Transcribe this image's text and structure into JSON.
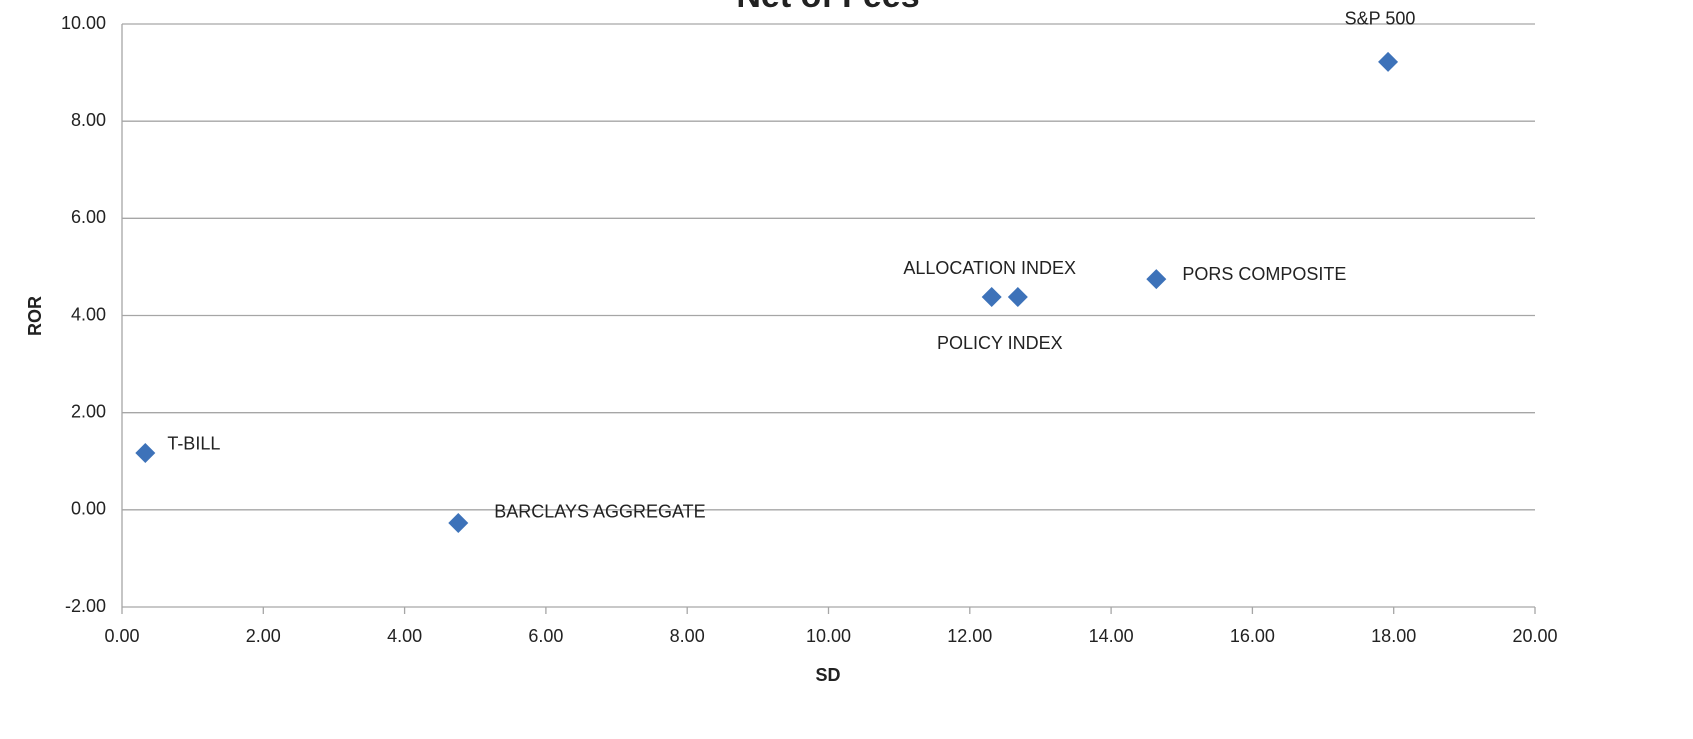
{
  "chart_data": {
    "type": "scatter",
    "title": "Net of Fees",
    "x_label": "SD",
    "y_label": "ROR",
    "labels": [
      "T-BILL",
      "BARCLAYS AGGREGATE",
      "ALLOCATION INDEX",
      "POLICY INDEX",
      "PORS COMPOSITE",
      "S&P 500"
    ],
    "x": [
      0.33,
      4.76,
      12.31,
      12.68,
      14.64,
      17.92
    ],
    "y": [
      1.17,
      -0.27,
      4.38,
      4.38,
      4.75,
      9.22
    ],
    "color": "#3d72b9",
    "xlim": [
      0,
      20
    ],
    "xticks": [
      {
        "value": 0,
        "label": "0.00"
      },
      {
        "value": 2,
        "label": "2.00"
      },
      {
        "value": 4,
        "label": "4.00"
      },
      {
        "value": 6,
        "label": "6.00"
      },
      {
        "value": 8,
        "label": "8.00"
      },
      {
        "value": 10,
        "label": "10.00"
      },
      {
        "value": 12,
        "label": "12.00"
      },
      {
        "value": 14,
        "label": "14.00"
      },
      {
        "value": 16,
        "label": "16.00"
      },
      {
        "value": 18,
        "label": "18.00"
      },
      {
        "value": 20,
        "label": "20.00"
      }
    ],
    "ylim": [
      -2,
      10
    ],
    "yticks": [
      {
        "value": -2,
        "label": "-2.00"
      },
      {
        "value": 0,
        "label": "0.00"
      },
      {
        "value": 2,
        "label": "2.00"
      },
      {
        "value": 4,
        "label": "4.00"
      },
      {
        "value": 6,
        "label": "6.00"
      },
      {
        "value": 8,
        "label": "8.00"
      },
      {
        "value": 10,
        "label": "10.00"
      }
    ],
    "grid": true
  }
}
